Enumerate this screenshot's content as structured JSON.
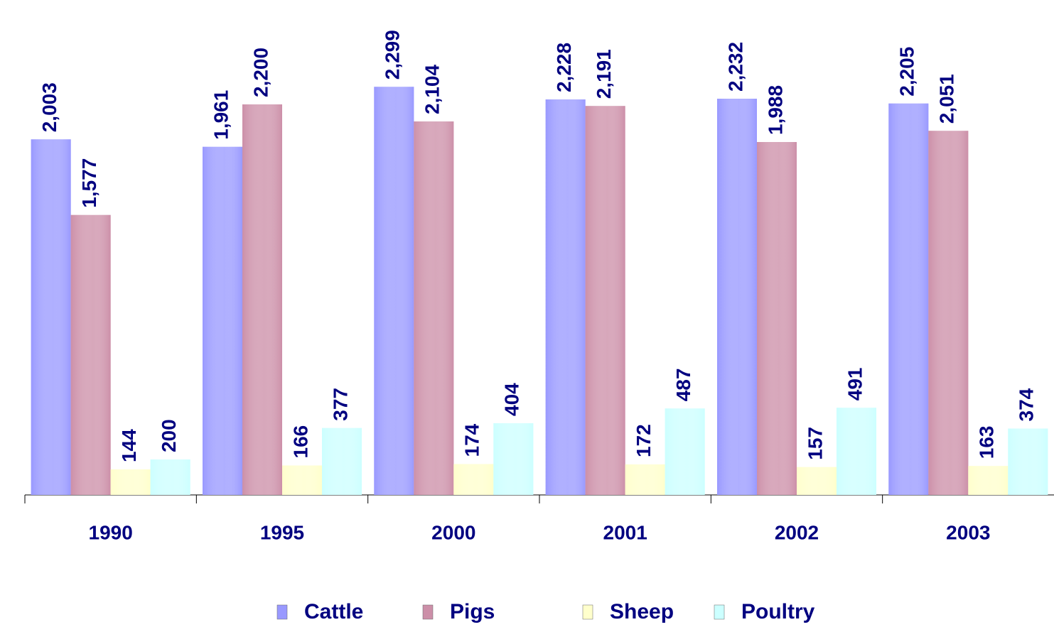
{
  "chart_data": {
    "type": "bar",
    "categories": [
      "1990",
      "1995",
      "2000",
      "2001",
      "2002",
      "2003"
    ],
    "series": [
      {
        "name": "Cattle",
        "color": "#9999ff",
        "values": [
          2003,
          1961,
          2299,
          2228,
          2232,
          2205
        ],
        "value_labels": [
          "2,003",
          "1,961",
          "2,299",
          "2,228",
          "2,232",
          "2,205"
        ]
      },
      {
        "name": "Pigs",
        "color": "#cc8fa8",
        "values": [
          1577,
          2200,
          2104,
          2191,
          1988,
          2051
        ],
        "value_labels": [
          "1,577",
          "2,200",
          "2,104",
          "2,191",
          "1,988",
          "2,051"
        ]
      },
      {
        "name": "Sheep",
        "color": "#ffffcc",
        "values": [
          144,
          166,
          174,
          172,
          157,
          163
        ]
      },
      {
        "name": "Poultry",
        "color": "#ccffff",
        "values": [
          200,
          377,
          404,
          487,
          491,
          374
        ]
      }
    ],
    "ylim": [
      0,
      2500
    ],
    "legend": "bottom"
  }
}
